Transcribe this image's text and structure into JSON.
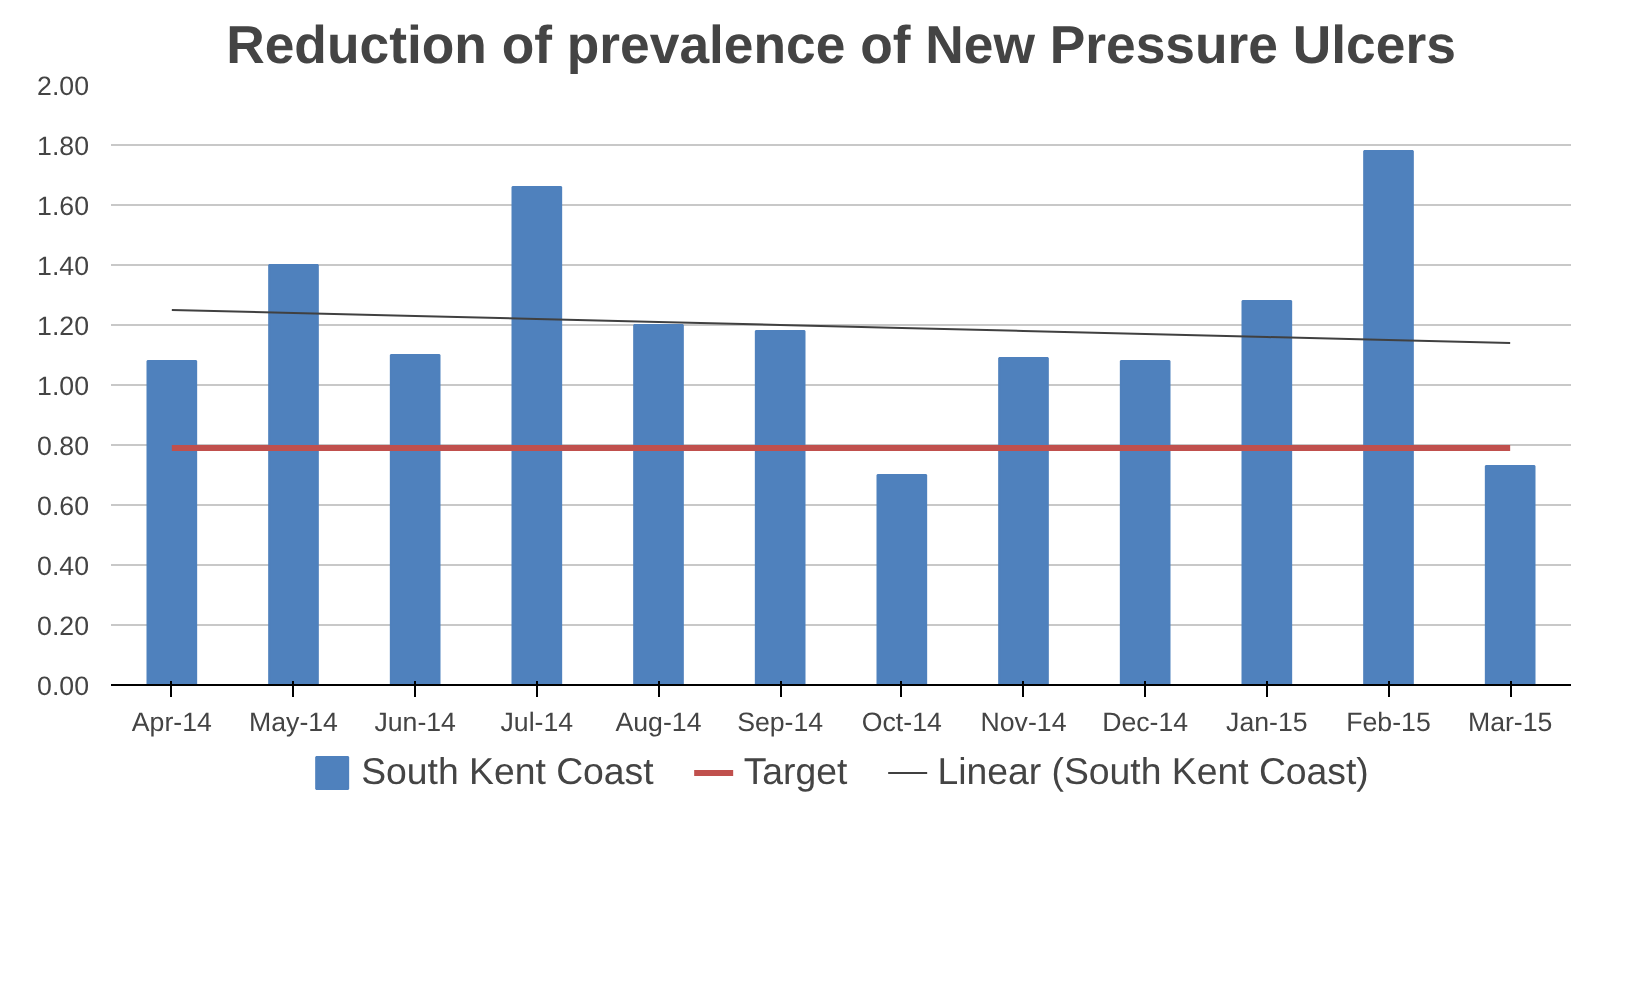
{
  "chart_data": {
    "type": "bar",
    "title": "Reduction of prevalence of New Pressure Ulcers",
    "categories": [
      "Apr-14",
      "May-14",
      "Jun-14",
      "Jul-14",
      "Aug-14",
      "Sep-14",
      "Oct-14",
      "Nov-14",
      "Dec-14",
      "Jan-15",
      "Feb-15",
      "Mar-15"
    ],
    "series": [
      {
        "name": "South Kent Coast",
        "type": "bar",
        "color": "#4f81bd",
        "values": [
          1.08,
          1.4,
          1.1,
          1.66,
          1.2,
          1.18,
          0.7,
          1.09,
          1.08,
          1.28,
          1.78,
          0.73
        ]
      },
      {
        "name": "Target",
        "type": "line",
        "color": "#c0504d",
        "values": [
          0.79,
          0.79,
          0.79,
          0.79,
          0.79,
          0.79,
          0.79,
          0.79,
          0.79,
          0.79,
          0.79,
          0.79
        ]
      },
      {
        "name": "Linear (South Kent Coast)",
        "type": "line",
        "color": "#404040",
        "values": [
          1.25,
          1.24,
          1.23,
          1.22,
          1.21,
          1.2,
          1.19,
          1.18,
          1.17,
          1.16,
          1.15,
          1.14
        ]
      }
    ],
    "ylim": [
      0,
      2
    ],
    "yticks": [
      {
        "value": 0,
        "label": "0.00"
      },
      {
        "value": 0.2,
        "label": "0.20"
      },
      {
        "value": 0.4,
        "label": "0.40"
      },
      {
        "value": 0.6,
        "label": "0.60"
      },
      {
        "value": 0.8,
        "label": "0.80"
      },
      {
        "value": 1.0,
        "label": "1.00"
      },
      {
        "value": 1.2,
        "label": "1.20"
      },
      {
        "value": 1.4,
        "label": "1.40"
      },
      {
        "value": 1.6,
        "label": "1.60"
      },
      {
        "value": 1.8,
        "label": "1.80"
      },
      {
        "value": 2.0,
        "label": "2.00"
      }
    ],
    "grid": "y",
    "legend": "bottom"
  }
}
